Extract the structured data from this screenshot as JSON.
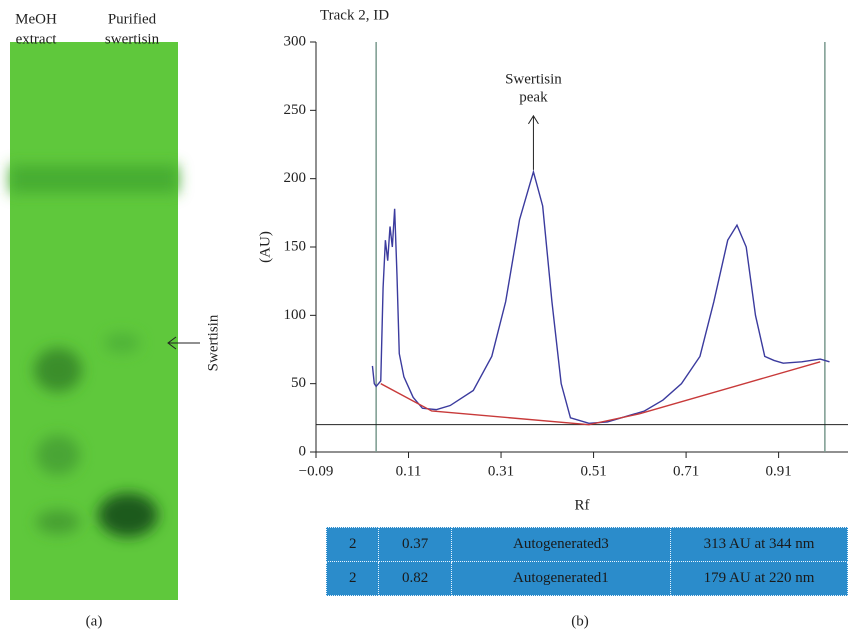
{
  "plate": {
    "lanes": [
      [
        "MeOH",
        "extract"
      ],
      [
        "Purified",
        "swertisin"
      ]
    ],
    "band_label": "Swertisin"
  },
  "panel_labels": [
    "(a)",
    "(b)"
  ],
  "chart_data": {
    "type": "line",
    "title": "Track 2, ID",
    "ylabel": "(AU)",
    "xlabel": "Rf",
    "annotation": [
      "Swertisin",
      "peak"
    ],
    "xlim": [
      -0.09,
      1.06
    ],
    "ylim": [
      0,
      300
    ],
    "xticks": [
      {
        "value": -0.09,
        "label": "−0.09"
      },
      0.11,
      0.31,
      0.51,
      0.71,
      0.91
    ],
    "yticks": [
      0,
      50,
      100,
      150,
      200,
      250,
      300
    ],
    "vlines": [
      0.04,
      1.01
    ],
    "vline_color": "#7a9a8e",
    "hline": 20,
    "hline_color": "#222",
    "series": [
      {
        "color": "#3b3b9e",
        "x": [
          0.032,
          0.036,
          0.04,
          0.05,
          0.055,
          0.06,
          0.065,
          0.07,
          0.075,
          0.08,
          0.085,
          0.09,
          0.1,
          0.12,
          0.14,
          0.17,
          0.2,
          0.25,
          0.29,
          0.32,
          0.35,
          0.38,
          0.4,
          0.42,
          0.44,
          0.46,
          0.5,
          0.54,
          0.58,
          0.62,
          0.66,
          0.7,
          0.74,
          0.77,
          0.8,
          0.82,
          0.84,
          0.86,
          0.88,
          0.9,
          0.92,
          0.96,
          1.0,
          1.02
        ],
        "values": [
          63,
          50,
          48,
          52,
          120,
          155,
          140,
          165,
          150,
          178,
          130,
          72,
          55,
          40,
          32,
          31,
          34,
          45,
          70,
          110,
          170,
          205,
          180,
          110,
          50,
          25,
          21,
          22,
          26,
          30,
          38,
          50,
          70,
          110,
          155,
          166,
          150,
          100,
          70,
          67,
          65,
          66,
          68,
          66
        ]
      },
      {
        "color": "#c83a3a",
        "x": [
          0.05,
          0.16,
          0.5,
          0.61,
          1.0
        ],
        "values": [
          50,
          30,
          20,
          28,
          66
        ]
      }
    ]
  },
  "table": {
    "rows": [
      [
        "2",
        "0.37",
        "Autogenerated3",
        "313 AU at 344 nm"
      ],
      [
        "2",
        "0.82",
        "Autogenerated1",
        "179 AU at 220 nm"
      ]
    ]
  }
}
